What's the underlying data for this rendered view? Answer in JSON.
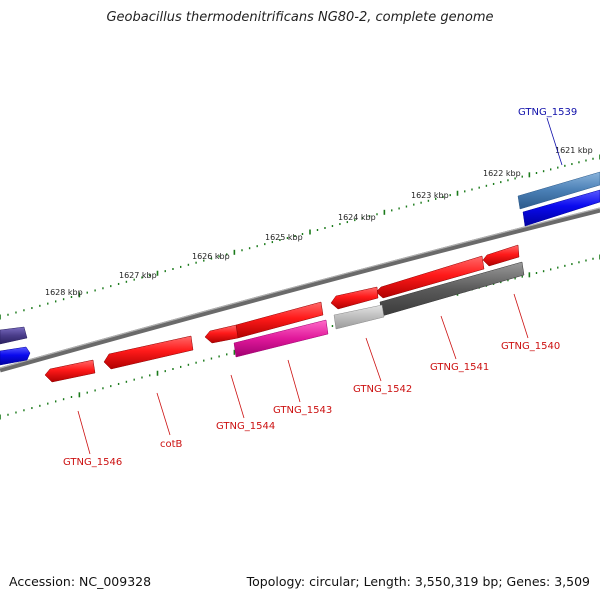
{
  "title": "Geobacillus thermodenitrificans NG80-2, complete genome",
  "footer": {
    "accession": "Accession: NC_009328",
    "info": "Topology: circular; Length: 3,550,319 bp; Genes: 3,509"
  },
  "axis": {
    "unit": "kbp",
    "ticks": [
      {
        "value": 1621,
        "label": "1621 kbp"
      },
      {
        "value": 1622,
        "label": "1622 kbp"
      },
      {
        "value": 1623,
        "label": "1623 kbp"
      },
      {
        "value": 1624,
        "label": "1624 kbp"
      },
      {
        "value": 1625,
        "label": "1625 kbp"
      },
      {
        "value": 1626,
        "label": "1626 kbp"
      },
      {
        "value": 1627,
        "label": "1627 kbp"
      },
      {
        "value": 1628,
        "label": "1628 kbp"
      }
    ]
  },
  "colors": {
    "backbone": "#808080",
    "tick": "#1a7a1a",
    "forward_gene": "#1010ee",
    "forward_label": "#1010aa",
    "reverse_gene": "#ee1111",
    "reverse_label": "#cc1111",
    "pink_feature": "#e0189a",
    "gray_feature": "#666666",
    "lightgray_feature": "#c0c0c0",
    "steel_feature": "#4a7fb5",
    "purple_feature": "#4a3d8a"
  },
  "genes": [
    {
      "name": "GTNG_1539",
      "strand": "+",
      "label": "GTNG_1539"
    },
    {
      "name": "GTNG_1540",
      "strand": "-",
      "label": "GTNG_1540"
    },
    {
      "name": "GTNG_1541",
      "strand": "-",
      "label": "GTNG_1541"
    },
    {
      "name": "GTNG_1542",
      "strand": "-",
      "label": "GTNG_1542"
    },
    {
      "name": "GTNG_1543",
      "strand": "-",
      "label": "GTNG_1543"
    },
    {
      "name": "GTNG_1544",
      "strand": "-",
      "label": "GTNG_1544"
    },
    {
      "name": "cotB",
      "strand": "-",
      "label": "cotB"
    },
    {
      "name": "GTNG_1546",
      "strand": "-",
      "label": "GTNG_1546"
    }
  ]
}
